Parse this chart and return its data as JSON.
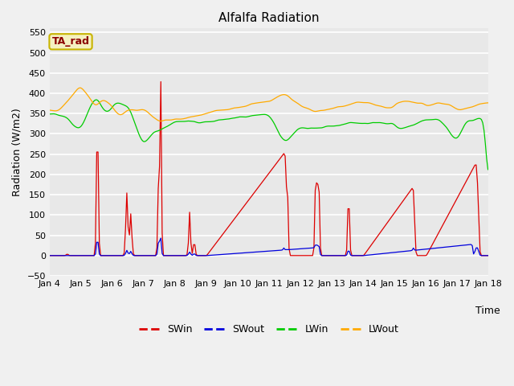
{
  "title": "Alfalfa Radiation",
  "xlabel": "Time",
  "ylabel": "Radiation (W/m2)",
  "ylim": [
    -50,
    560
  ],
  "yticks": [
    -50,
    0,
    50,
    100,
    150,
    200,
    250,
    300,
    350,
    400,
    450,
    500,
    550
  ],
  "bg_color": "#e8e8e8",
  "fig_color": "#f0f0f0",
  "line_colors": [
    "#dd0000",
    "#0000dd",
    "#00cc00",
    "#ffaa00"
  ],
  "legend_entries": [
    "SWin",
    "SWout",
    "LWin",
    "LWout"
  ],
  "annot_text": "TA_rad",
  "annot_fg": "#8b0000",
  "annot_bg": "#f5f0c0",
  "annot_edge": "#c8b400"
}
